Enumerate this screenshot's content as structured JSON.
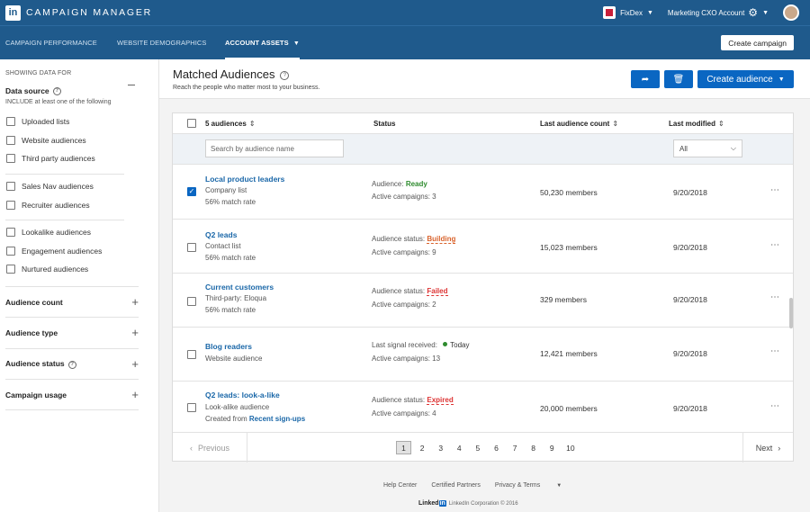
{
  "header": {
    "logo": "in",
    "app_title": "CAMPAIGN MANAGER",
    "company": "FixDex",
    "account": "Marketing CXO Account"
  },
  "subnav": {
    "tabs": [
      {
        "label": "CAMPAIGN PERFORMANCE"
      },
      {
        "label": "WEBSITE DEMOGRAPHICS"
      },
      {
        "label": "ACCOUNT ASSETS"
      }
    ],
    "create_campaign": "Create campaign"
  },
  "sidebar": {
    "showing": "SHOWING DATA FOR",
    "data_source": "Data source",
    "include_hint": "INCLUDE at least one of the following",
    "group1": [
      "Uploaded lists",
      "Website audiences",
      "Third party audiences"
    ],
    "group2": [
      "Sales Nav audiences",
      "Recruiter audiences"
    ],
    "group3": [
      "Lookalike audiences",
      "Engagement audiences",
      "Nurtured audiences"
    ],
    "sections": [
      "Audience count",
      "Audience type",
      "Audience status",
      "Campaign usage"
    ]
  },
  "main": {
    "title": "Matched Audiences",
    "subtitle": "Reach the people who matter most to your business.",
    "create_audience": "Create audience"
  },
  "table": {
    "headers": {
      "audiences": "5 audiences",
      "status": "Status",
      "last_count": "Last audience count",
      "last_modified": "Last modified"
    },
    "search_placeholder": "Search by audience name",
    "filter_value": "All",
    "rows": [
      {
        "name": "Local product leaders",
        "meta1": "Company list",
        "meta2": "56% match rate",
        "status_label": "Audience: ",
        "status_value": "Ready",
        "campaigns": "Active campaigns: 3",
        "count": "50,230 members",
        "date": "9/20/2018",
        "checked": true
      },
      {
        "name": "Q2 leads",
        "meta1": "Contact list",
        "meta2": "56% match rate",
        "status_label": "Audience status: ",
        "status_value": "Building",
        "campaigns": "Active campaigns: 9",
        "count": "15,023 members",
        "date": "9/20/2018",
        "checked": false
      },
      {
        "name": "Current customers",
        "meta1": "Third-party: Eloqua",
        "meta2": "56% match rate",
        "status_label": "Audience status: ",
        "status_value": "Failed",
        "campaigns": "Active campaigns: 2",
        "count": "329 members",
        "date": "9/20/2018",
        "checked": false
      },
      {
        "name": "Blog readers",
        "meta1": "Website audience",
        "status_label": "Last signal received: ",
        "status_value": "Today",
        "campaigns": "Active campaigns: 13",
        "count": "12,421 members",
        "date": "9/20/2018",
        "checked": false
      },
      {
        "name": "Q2 leads: look-a-like",
        "meta1": "Look-alike audience",
        "meta2_prefix": "Created from ",
        "meta2_link": "Recent sign-ups",
        "status_label": "Audience status: ",
        "status_value": "Expired",
        "campaigns": "Active campaigns: 4",
        "count": "20,000 members",
        "date": "9/20/2018",
        "checked": false
      }
    ],
    "more": "⋯"
  },
  "pagination": {
    "previous": "Previous",
    "next": "Next",
    "pages": [
      "1",
      "2",
      "3",
      "4",
      "5",
      "6",
      "7",
      "8",
      "9",
      "10"
    ],
    "current": "1"
  },
  "footer": {
    "links": [
      "Help Center",
      "Certified Partners",
      "Privacy & Terms"
    ],
    "logo": "Linked",
    "logo_in": "in",
    "copyright": "LinkedIn Corporation © 2016"
  },
  "colors": {
    "header_bg": "#1f5a8c",
    "primary": "#0a66c2",
    "link": "#1a67a8",
    "ready": "#2e8b2e",
    "warning": "#d9622b",
    "error": "#dd3333"
  }
}
